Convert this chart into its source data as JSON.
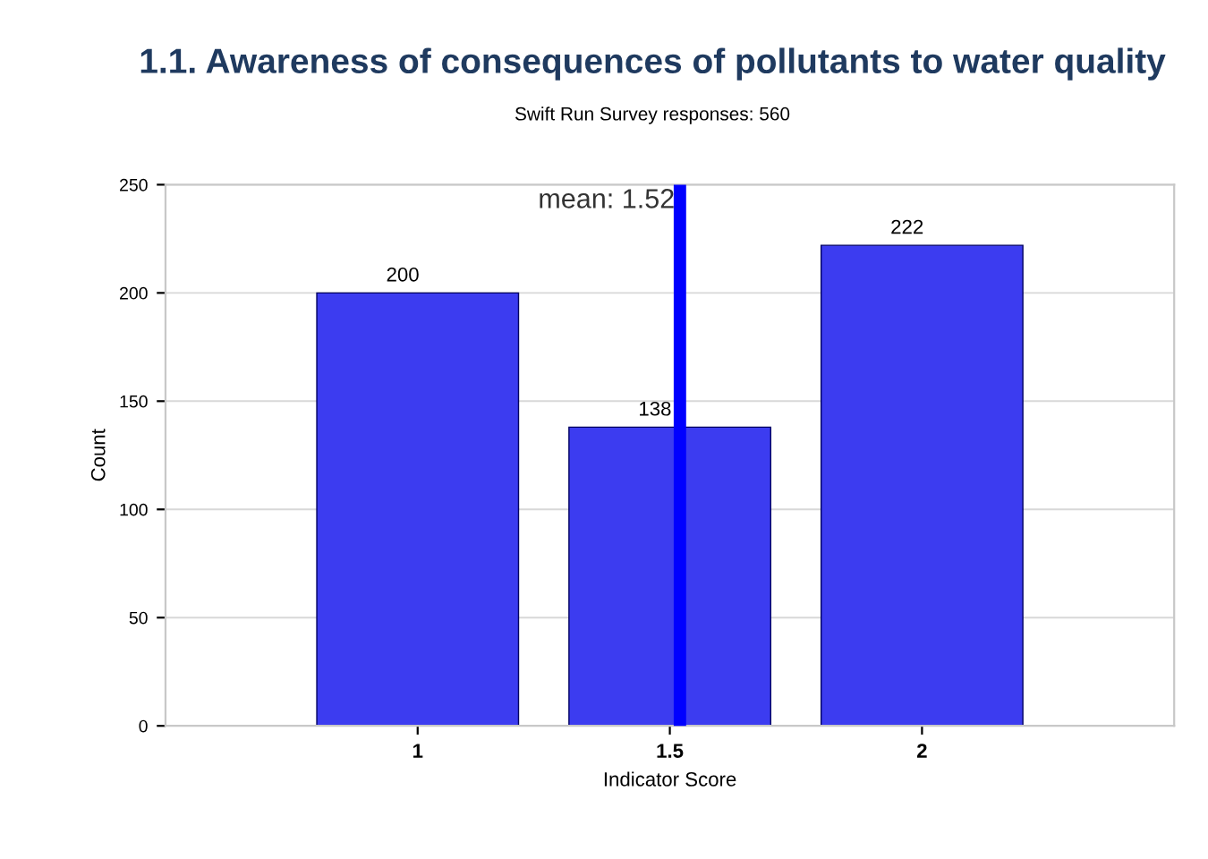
{
  "chart_data": {
    "type": "bar",
    "title": "1.1. Awareness of consequences of pollutants to water quality",
    "subtitle": "Swift Run Survey responses: 560",
    "xlabel": "Indicator Score",
    "ylabel": "Count",
    "x": [
      1,
      1.5,
      2
    ],
    "values": [
      200,
      138,
      222
    ],
    "color": "#3c3cf0",
    "xlim": [
      0.5,
      2.5
    ],
    "xticks": [
      1,
      1.5,
      2
    ],
    "ylim": [
      0,
      250
    ],
    "yticks": [
      0,
      50,
      100,
      150,
      200,
      250
    ],
    "grid": "y",
    "data_labels": true,
    "ref_lines": [
      {
        "axis": "x",
        "value": 1.52,
        "label": "mean: 1.52",
        "color": "#0000ff",
        "line_style": "solid"
      }
    ]
  }
}
